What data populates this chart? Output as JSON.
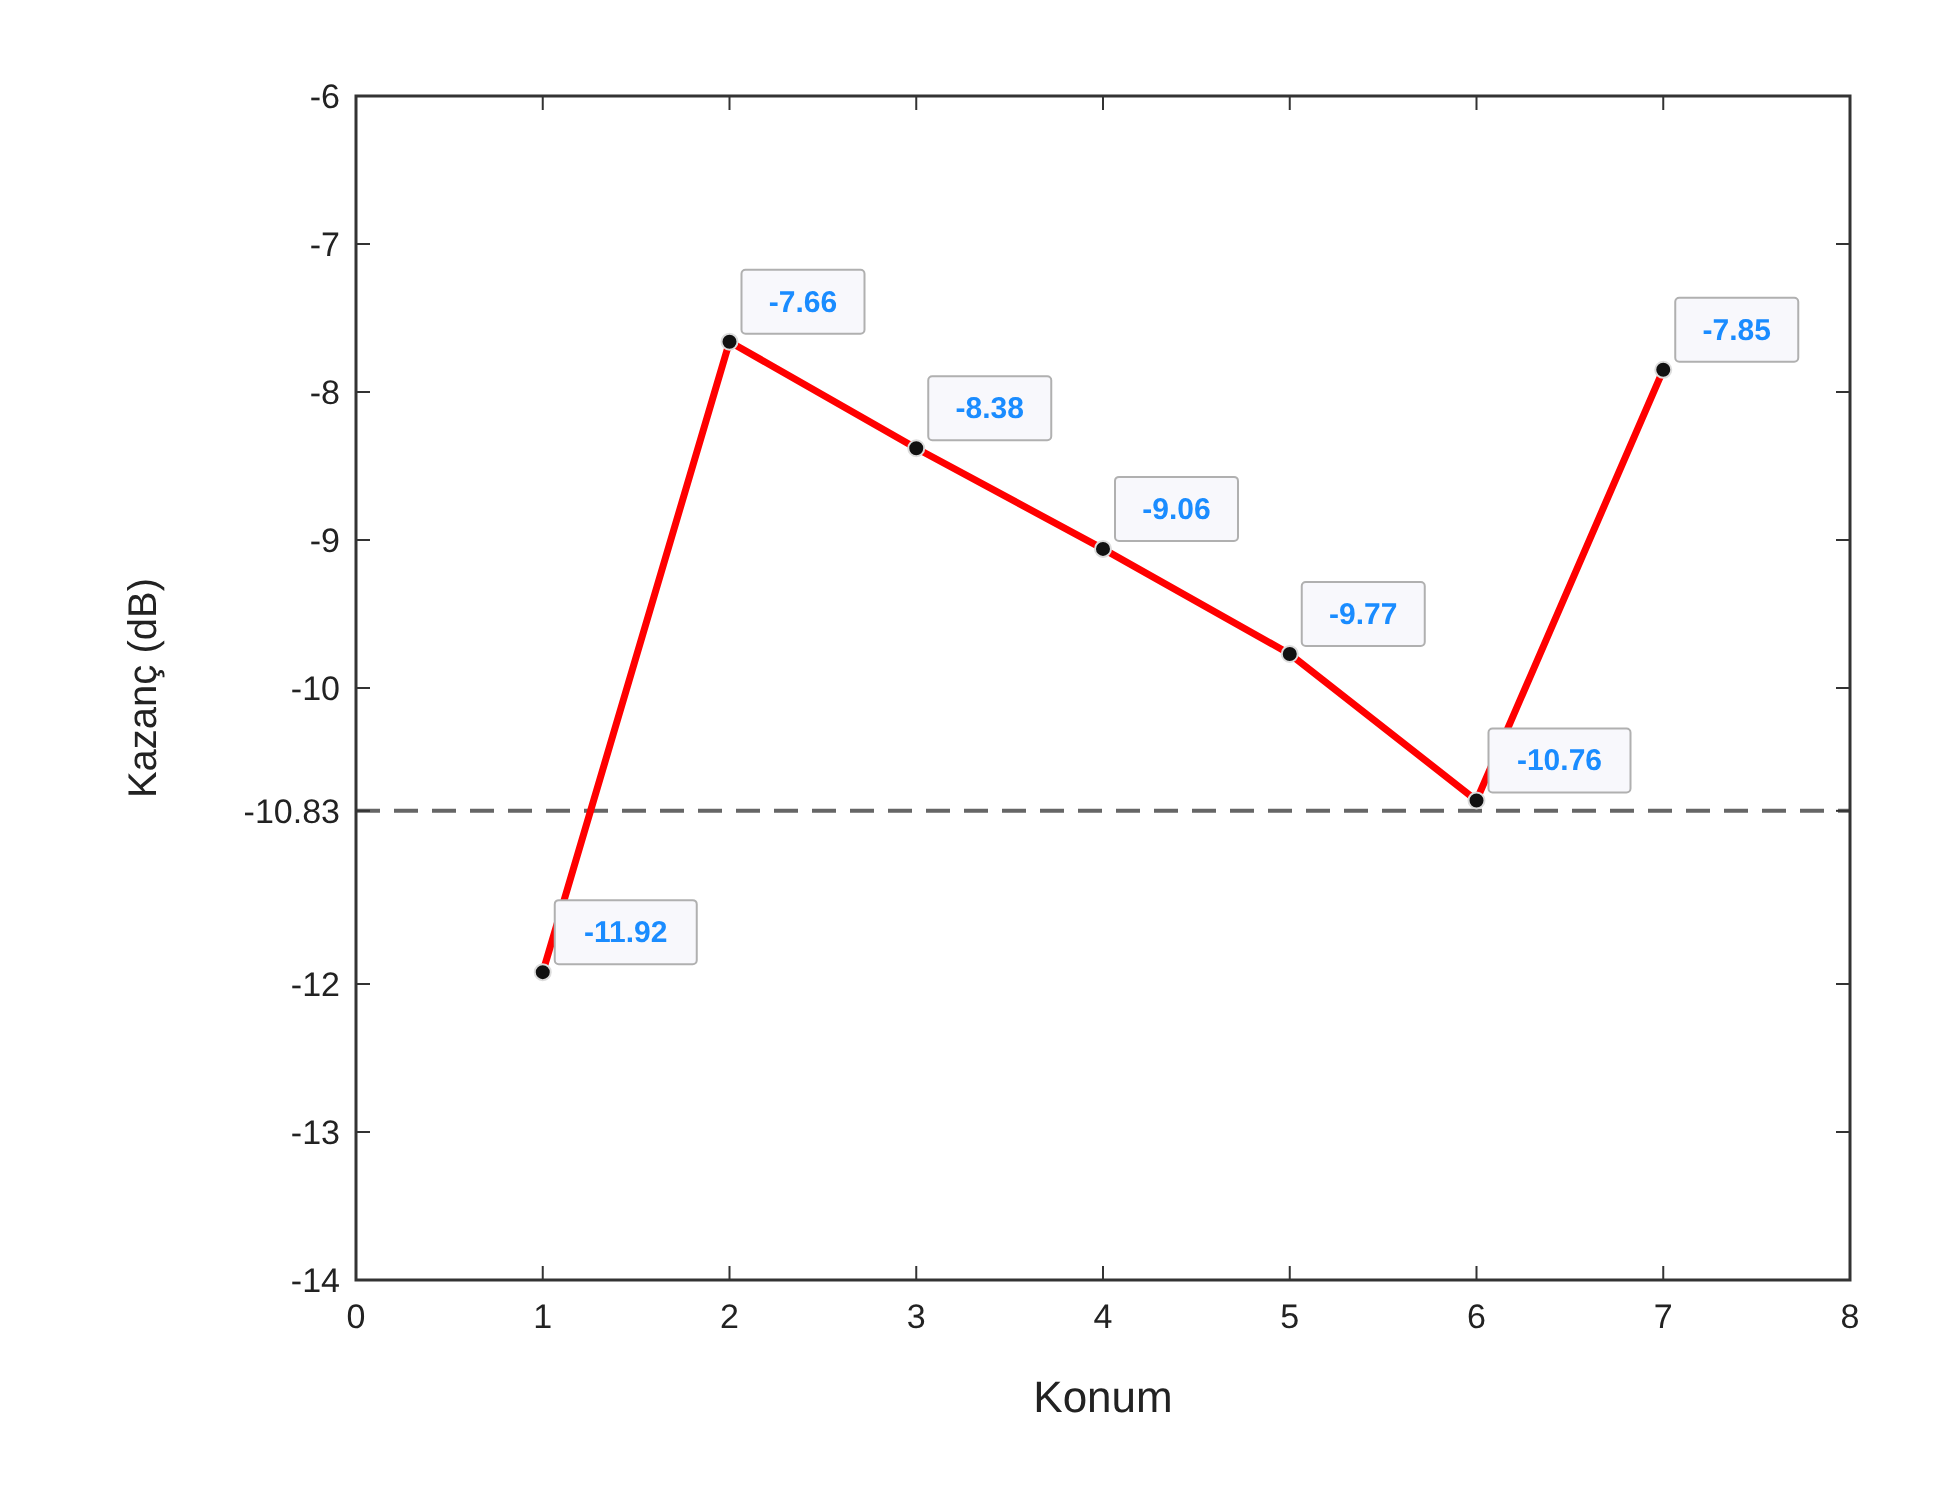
{
  "chart_data": {
    "type": "line",
    "xlabel": "Konum",
    "ylabel": "Kazanç (dB)",
    "x": [
      1,
      2,
      3,
      4,
      5,
      6,
      7
    ],
    "series": [
      {
        "color": "#ff0000",
        "values": [
          -11.92,
          -7.66,
          -8.38,
          -9.06,
          -9.77,
          -10.76,
          -7.85
        ]
      }
    ],
    "xlim": [
      0,
      8
    ],
    "xticks": [
      0,
      1,
      2,
      3,
      4,
      5,
      6,
      7,
      8
    ],
    "ylim": [
      -14,
      -6
    ],
    "yticks": [
      -14,
      -13,
      -12,
      -10.83,
      -10,
      -9,
      -8,
      -7,
      -6
    ],
    "ref_lines": [
      {
        "axis": "y",
        "value": -10.83,
        "color": "#666666",
        "line_style": "dashed"
      }
    ],
    "data_labels": true,
    "marker": "circle",
    "line_style": "solid",
    "grid": false
  }
}
